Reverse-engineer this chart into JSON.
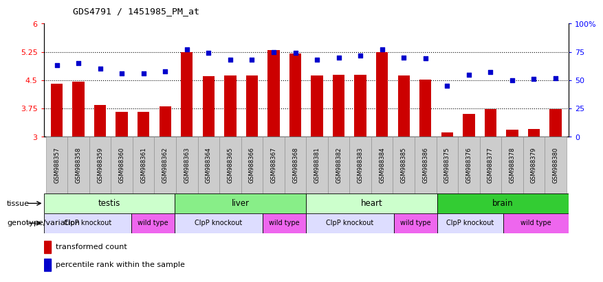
{
  "title": "GDS4791 / 1451985_PM_at",
  "samples": [
    "GSM988357",
    "GSM988358",
    "GSM988359",
    "GSM988360",
    "GSM988361",
    "GSM988362",
    "GSM988363",
    "GSM988364",
    "GSM988365",
    "GSM988366",
    "GSM988367",
    "GSM988368",
    "GSM988381",
    "GSM988382",
    "GSM988383",
    "GSM988384",
    "GSM988385",
    "GSM988386",
    "GSM988375",
    "GSM988376",
    "GSM988377",
    "GSM988378",
    "GSM988379",
    "GSM988380"
  ],
  "bar_values": [
    4.4,
    4.46,
    3.85,
    3.67,
    3.67,
    3.8,
    5.25,
    4.6,
    4.62,
    4.62,
    5.3,
    5.2,
    4.62,
    4.65,
    4.65,
    5.25,
    4.62,
    4.52,
    3.12,
    3.6,
    3.73,
    3.18,
    3.2,
    3.73
  ],
  "dot_values": [
    63,
    65,
    60,
    56,
    56,
    58,
    77,
    74,
    68,
    68,
    75,
    74,
    68,
    70,
    72,
    77,
    70,
    69,
    45,
    55,
    57,
    50,
    51,
    52
  ],
  "bar_color": "#cc0000",
  "dot_color": "#0000cc",
  "ylim_left": [
    3,
    6
  ],
  "ylim_right": [
    0,
    100
  ],
  "yticks_left": [
    3,
    3.75,
    4.5,
    5.25,
    6
  ],
  "yticks_right": [
    0,
    25,
    50,
    75,
    100
  ],
  "ytick_labels_left": [
    "3",
    "3.75",
    "4.5",
    "5.25",
    "6"
  ],
  "ytick_labels_right": [
    "0",
    "25",
    "50",
    "75",
    "100%"
  ],
  "hlines": [
    3.75,
    4.5,
    5.25
  ],
  "tissue_groups": [
    {
      "label": "testis",
      "start": 0,
      "end": 6,
      "color": "#ccffcc"
    },
    {
      "label": "liver",
      "start": 6,
      "end": 12,
      "color": "#88ee88"
    },
    {
      "label": "heart",
      "start": 12,
      "end": 18,
      "color": "#ccffcc"
    },
    {
      "label": "brain",
      "start": 18,
      "end": 24,
      "color": "#33cc33"
    }
  ],
  "genotype_groups": [
    {
      "label": "ClpP knockout",
      "start": 0,
      "end": 4,
      "color": "#ddddff"
    },
    {
      "label": "wild type",
      "start": 4,
      "end": 6,
      "color": "#ee66ee"
    },
    {
      "label": "ClpP knockout",
      "start": 6,
      "end": 10,
      "color": "#ddddff"
    },
    {
      "label": "wild type",
      "start": 10,
      "end": 12,
      "color": "#ee66ee"
    },
    {
      "label": "ClpP knockout",
      "start": 12,
      "end": 16,
      "color": "#ddddff"
    },
    {
      "label": "wild type",
      "start": 16,
      "end": 18,
      "color": "#ee66ee"
    },
    {
      "label": "ClpP knockout",
      "start": 18,
      "end": 21,
      "color": "#ddddff"
    },
    {
      "label": "wild type",
      "start": 21,
      "end": 24,
      "color": "#ee66ee"
    }
  ],
  "legend_items": [
    {
      "label": "transformed count",
      "color": "#cc0000"
    },
    {
      "label": "percentile rank within the sample",
      "color": "#0000cc"
    }
  ],
  "tissue_label": "tissue",
  "genotype_label": "genotype/variation",
  "xticklabel_bg": "#dddddd",
  "plot_bg_color": "#ffffff"
}
